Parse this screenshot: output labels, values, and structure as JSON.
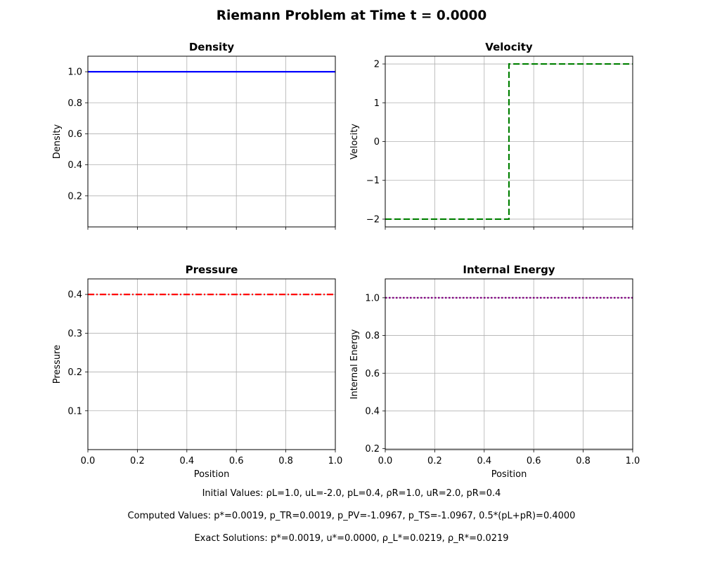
{
  "suptitle": "Riemann Problem at Time t = 0.0000",
  "footer": {
    "initial": "Initial Values:  ρL=1.0, uL=-2.0, pL=0.4,  ρR=1.0, uR=2.0, pR=0.4",
    "computed": "Computed Values:  p*=0.0019, p_TR=0.0019, p_PV=-1.0967, p_TS=-1.0967, 0.5*(pL+pR)=0.4000",
    "exact": "Exact Solutions:  p*=0.0019, u*=0.0000, ρ_L*=0.0219, ρ_R*=0.0219"
  },
  "chart_data": [
    {
      "id": "density",
      "type": "line",
      "title": "Density",
      "xlabel": "",
      "ylabel": "Density",
      "xlim": [
        0,
        1
      ],
      "ylim": [
        0.0,
        1.1
      ],
      "xticks": [
        0,
        0.2,
        0.4,
        0.6,
        0.8,
        1.0
      ],
      "xticklabels": [],
      "yticks": [
        0.2,
        0.4,
        0.6,
        0.8,
        1.0
      ],
      "yticklabels": [
        "0.2",
        "0.4",
        "0.6",
        "0.8",
        "1.0"
      ],
      "grid": true,
      "series": [
        {
          "color": "#0000ff",
          "style": "solid",
          "x": [
            0,
            1
          ],
          "y": [
            1.0,
            1.0
          ]
        }
      ]
    },
    {
      "id": "velocity",
      "type": "line",
      "title": "Velocity",
      "xlabel": "",
      "ylabel": "Velocity",
      "xlim": [
        0,
        1
      ],
      "ylim": [
        -2.2,
        2.2
      ],
      "xticks": [
        0,
        0.2,
        0.4,
        0.6,
        0.8,
        1.0
      ],
      "xticklabels": [],
      "yticks": [
        -2,
        -1,
        0,
        1,
        2
      ],
      "yticklabels": [
        "−2",
        "−1",
        "0",
        "1",
        "2"
      ],
      "grid": true,
      "series": [
        {
          "color": "#008000",
          "style": "dashed",
          "x": [
            0,
            0.5,
            0.5,
            1
          ],
          "y": [
            -2,
            -2,
            2,
            2
          ]
        }
      ]
    },
    {
      "id": "pressure",
      "type": "line",
      "title": "Pressure",
      "xlabel": "Position",
      "ylabel": "Pressure",
      "xlim": [
        0,
        1
      ],
      "ylim": [
        0.0,
        0.44
      ],
      "xticks": [
        0,
        0.2,
        0.4,
        0.6,
        0.8,
        1.0
      ],
      "xticklabels": [
        "0.0",
        "0.2",
        "0.4",
        "0.6",
        "0.8",
        "1.0"
      ],
      "yticks": [
        0.1,
        0.2,
        0.3,
        0.4
      ],
      "yticklabels": [
        "0.1",
        "0.2",
        "0.3",
        "0.4"
      ],
      "grid": true,
      "series": [
        {
          "color": "#ff0000",
          "style": "dashdot",
          "x": [
            0,
            1
          ],
          "y": [
            0.4,
            0.4
          ]
        }
      ]
    },
    {
      "id": "energy",
      "type": "line",
      "title": "Internal Energy",
      "xlabel": "Position",
      "ylabel": "Internal Energy",
      "xlim": [
        0,
        1
      ],
      "ylim": [
        0.195,
        1.1
      ],
      "xticks": [
        0,
        0.2,
        0.4,
        0.6,
        0.8,
        1.0
      ],
      "xticklabels": [
        "0.0",
        "0.2",
        "0.4",
        "0.6",
        "0.8",
        "1.0"
      ],
      "yticks": [
        0.2,
        0.4,
        0.6,
        0.8,
        1.0
      ],
      "yticklabels": [
        "0.2",
        "0.4",
        "0.6",
        "0.8",
        "1.0"
      ],
      "grid": true,
      "series": [
        {
          "color": "#800080",
          "style": "dotted",
          "x": [
            0,
            1
          ],
          "y": [
            1.0,
            1.0
          ]
        }
      ]
    }
  ]
}
